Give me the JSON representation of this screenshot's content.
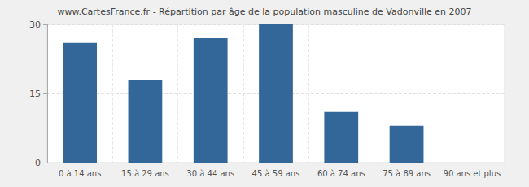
{
  "chart_data": {
    "type": "bar",
    "title": "www.CartesFrance.fr - Répartition par âge de la population masculine de Vadonville en 2007",
    "categories": [
      "0 à 14 ans",
      "15 à 29 ans",
      "30 à 44 ans",
      "45 à 59 ans",
      "60 à 74 ans",
      "75 à 89 ans",
      "90 ans et plus"
    ],
    "values": [
      26,
      18,
      27,
      30,
      11,
      8,
      0
    ],
    "color": "#336699",
    "ylim": [
      0,
      30
    ],
    "yticks": [
      0,
      15,
      30
    ],
    "grid": true
  }
}
